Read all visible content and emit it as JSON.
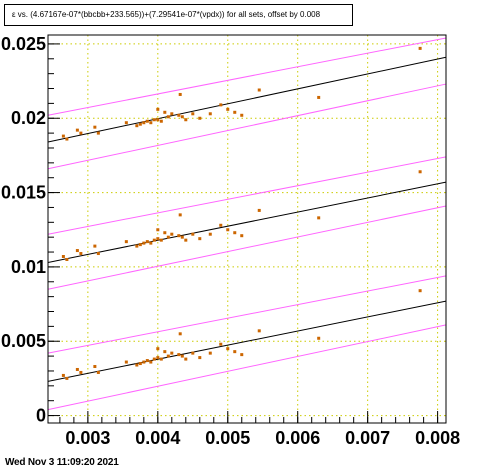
{
  "title": "ε vs. (4.67167e-07*(bbcbb+233.565))+(7.29541e-07*(vpdx)) for all sets, offset by 0.008",
  "footer": "Wed Nov  3 11:09:20 2021",
  "chart_data": {
    "type": "scatter",
    "title": "ε vs. (4.67167e-07*(bbcbb+233.565))+(7.29541e-07*(vpdx)) for all sets, offset by 0.008",
    "xlabel": "",
    "ylabel": "",
    "xlim": [
      0.00243,
      0.00812
    ],
    "ylim": [
      -0.0005,
      0.0256
    ],
    "x_ticks": [
      {
        "value": 0.003,
        "label": "0.003"
      },
      {
        "value": 0.004,
        "label": "0.004"
      },
      {
        "value": 0.005,
        "label": "0.005"
      },
      {
        "value": 0.006,
        "label": "0.006"
      },
      {
        "value": 0.007,
        "label": "0.007"
      },
      {
        "value": 0.008,
        "label": "0.008"
      }
    ],
    "y_ticks": [
      {
        "value": 0,
        "label": "0"
      },
      {
        "value": 0.005,
        "label": "0.005"
      },
      {
        "value": 0.01,
        "label": "0.01"
      },
      {
        "value": 0.015,
        "label": "0.015"
      },
      {
        "value": 0.02,
        "label": "0.02"
      },
      {
        "value": 0.025,
        "label": "0.025"
      }
    ],
    "grid": true,
    "point_color": "#cc6600",
    "fit_color": "#000000",
    "band_color": "#ff66ff",
    "grid_color": "#cccc00",
    "fits": [
      {
        "x": [
          0.00243,
          0.00812
        ],
        "y": [
          0.0023,
          0.0077
        ]
      },
      {
        "x": [
          0.00243,
          0.00812
        ],
        "y": [
          0.0103,
          0.0157
        ]
      },
      {
        "x": [
          0.00243,
          0.00812
        ],
        "y": [
          0.0184,
          0.0241
        ]
      }
    ],
    "bands": [
      {
        "x": [
          0.00243,
          0.00812
        ],
        "y": [
          0.0004,
          0.0061
        ]
      },
      {
        "x": [
          0.00243,
          0.00812
        ],
        "y": [
          0.0042,
          0.0094
        ]
      },
      {
        "x": [
          0.00243,
          0.00812
        ],
        "y": [
          0.0085,
          0.0141
        ]
      },
      {
        "x": [
          0.00243,
          0.00812
        ],
        "y": [
          0.0122,
          0.0174
        ]
      },
      {
        "x": [
          0.00243,
          0.00812
        ],
        "y": [
          0.0166,
          0.0223
        ]
      },
      {
        "x": [
          0.00243,
          0.00812
        ],
        "y": [
          0.0202,
          0.0254
        ]
      }
    ],
    "series": [
      {
        "x": [
          0.00265,
          0.0027,
          0.00285,
          0.0029,
          0.0031,
          0.00315,
          0.00355,
          0.0037,
          0.00375,
          0.0038,
          0.00385,
          0.0039,
          0.00395,
          0.004,
          0.004,
          0.00405,
          0.0041,
          0.00415,
          0.0042,
          0.0043,
          0.00432,
          0.00435,
          0.0044,
          0.0045,
          0.0046,
          0.00475,
          0.0049,
          0.005,
          0.0051,
          0.0052,
          0.00545,
          0.0063,
          0.00775
        ],
        "y": [
          0.0027,
          0.0025,
          0.0031,
          0.0029,
          0.0033,
          0.0029,
          0.0036,
          0.0034,
          0.0035,
          0.0036,
          0.0037,
          0.0036,
          0.0038,
          0.0039,
          0.0045,
          0.0038,
          0.0043,
          0.004,
          0.0042,
          0.0041,
          0.0055,
          0.004,
          0.0038,
          0.0042,
          0.0039,
          0.0042,
          0.0048,
          0.0045,
          0.0043,
          0.0041,
          0.0057,
          0.0052,
          0.0084
        ]
      },
      {
        "x": [
          0.00265,
          0.0027,
          0.00285,
          0.0029,
          0.0031,
          0.00315,
          0.00355,
          0.0037,
          0.00375,
          0.0038,
          0.00385,
          0.0039,
          0.00395,
          0.004,
          0.004,
          0.00405,
          0.0041,
          0.00415,
          0.0042,
          0.0043,
          0.00432,
          0.00435,
          0.0044,
          0.0045,
          0.0046,
          0.00475,
          0.0049,
          0.005,
          0.0051,
          0.0052,
          0.00545,
          0.0063,
          0.00775
        ],
        "y": [
          0.0107,
          0.0105,
          0.0111,
          0.0109,
          0.0114,
          0.0109,
          0.0117,
          0.0114,
          0.0115,
          0.0116,
          0.0117,
          0.0116,
          0.0118,
          0.0119,
          0.0125,
          0.0118,
          0.0123,
          0.012,
          0.0122,
          0.0121,
          0.0135,
          0.012,
          0.0118,
          0.0122,
          0.0119,
          0.0122,
          0.0128,
          0.0125,
          0.0123,
          0.0121,
          0.0138,
          0.0133,
          0.0164
        ]
      },
      {
        "x": [
          0.00265,
          0.0027,
          0.00285,
          0.0029,
          0.0031,
          0.00315,
          0.00355,
          0.0037,
          0.00375,
          0.0038,
          0.00385,
          0.0039,
          0.00395,
          0.004,
          0.004,
          0.00405,
          0.0041,
          0.00415,
          0.0042,
          0.0043,
          0.00432,
          0.00435,
          0.0044,
          0.0045,
          0.0046,
          0.00475,
          0.0049,
          0.005,
          0.0051,
          0.0052,
          0.00545,
          0.0063,
          0.00775
        ],
        "y": [
          0.0188,
          0.0186,
          0.0192,
          0.019,
          0.0194,
          0.019,
          0.0197,
          0.0195,
          0.0196,
          0.0197,
          0.0198,
          0.0197,
          0.0199,
          0.0199,
          0.0206,
          0.0198,
          0.0204,
          0.0201,
          0.0203,
          0.0202,
          0.0216,
          0.0201,
          0.0199,
          0.0203,
          0.02,
          0.0203,
          0.0209,
          0.0206,
          0.0204,
          0.0202,
          0.0219,
          0.0214,
          0.0247
        ]
      }
    ]
  }
}
